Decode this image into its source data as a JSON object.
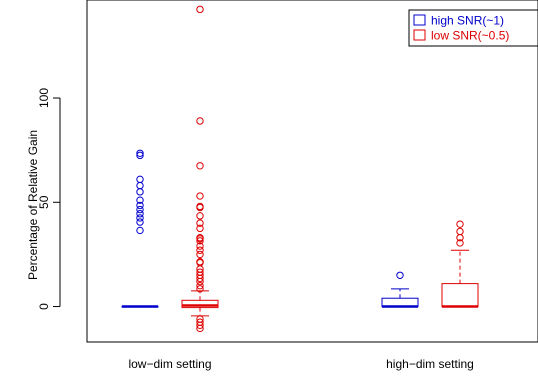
{
  "chart_data": {
    "type": "boxplot",
    "title": "",
    "xlabel": "",
    "ylabel": "Percentage of Relative Gain",
    "ylim": [
      -17,
      147
    ],
    "yticks": [
      0,
      50,
      100
    ],
    "groups": [
      "low−dim setting",
      "high−dim setting"
    ],
    "legend": {
      "position": "top-right",
      "entries": [
        "high SNR(~1)",
        "low SNR(~0.5)"
      ]
    },
    "series": [
      {
        "name": "high SNR(~1)",
        "color": "#0000cc",
        "boxes": [
          {
            "group": "low−dim setting",
            "q1": 0,
            "median": 0,
            "q3": 0,
            "whisker_low": 0,
            "whisker_high": 0,
            "outliers": [
              36.5,
              40.5,
              42.5,
              44.5,
              46.5,
              48.5,
              51,
              55,
              58,
              61,
              72.5,
              73.5
            ]
          },
          {
            "group": "high−dim setting",
            "q1": 0,
            "median": 0,
            "q3": 4,
            "whisker_low": 0,
            "whisker_high": 8.5,
            "outliers": [
              15
            ]
          }
        ]
      },
      {
        "name": "low SNR(~0.5)",
        "color": "#dd0000",
        "boxes": [
          {
            "group": "low−dim setting",
            "q1": -0.5,
            "median": 0.5,
            "q3": 3,
            "whisker_low": -4.5,
            "whisker_high": 7.5,
            "outliers": [
              -10.5,
              -9,
              -7.5,
              -6,
              8.5,
              10,
              12,
              13.5,
              15,
              16.5,
              18,
              21,
              21.5,
              25,
              27,
              29,
              31.5,
              32.5,
              33,
              37.5,
              40,
              43.5,
              47.5,
              48,
              53,
              67.5,
              89,
              142.5
            ]
          },
          {
            "group": "high−dim setting",
            "q1": 0,
            "median": 0,
            "q3": 11,
            "whisker_low": 0,
            "whisker_high": 27,
            "outliers": [
              30.5,
              33,
              36,
              39.5
            ]
          }
        ]
      }
    ]
  }
}
